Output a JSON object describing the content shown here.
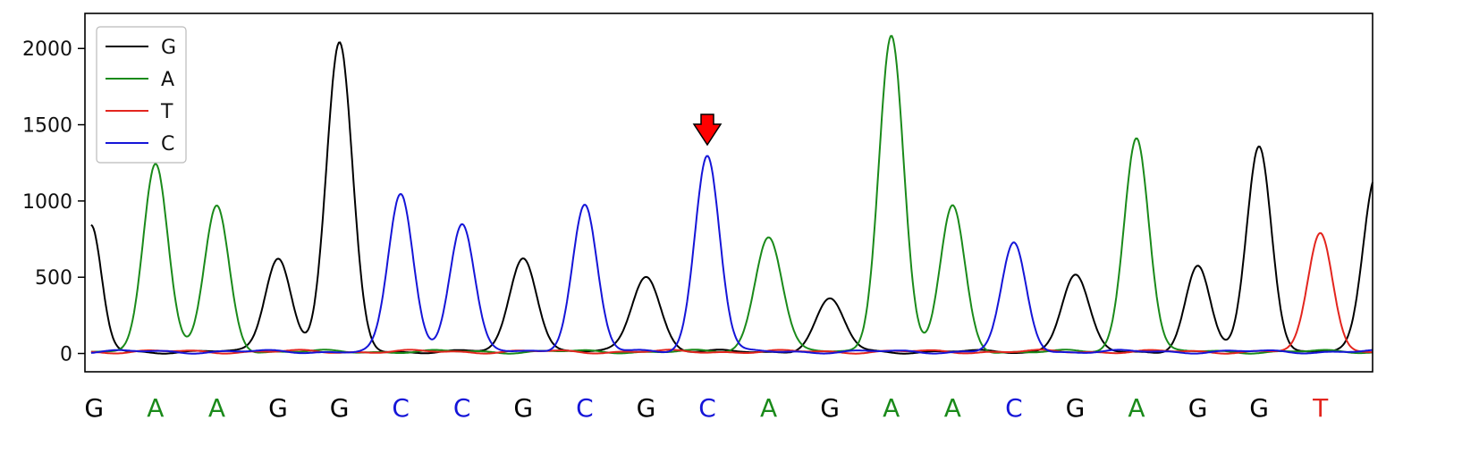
{
  "chart_data": {
    "type": "line",
    "title": "",
    "xlabel": "",
    "ylabel": "",
    "ylim": [
      -120,
      2230
    ],
    "yticks": [
      0,
      500,
      1000,
      1500,
      2000
    ],
    "ytick_labels": [
      "0",
      "500",
      "1000",
      "1500",
      "2000"
    ],
    "grid": false,
    "legend_position": "top-left",
    "colors": {
      "G": "#000000",
      "A": "#1a8a1a",
      "T": "#e3251e",
      "C": "#1515d8"
    },
    "series": [
      {
        "name": "G",
        "color": "#000000"
      },
      {
        "name": "A",
        "color": "#1a8a1a"
      },
      {
        "name": "T",
        "color": "#e3251e"
      },
      {
        "name": "C",
        "color": "#1515d8"
      }
    ],
    "base_calls": [
      "G",
      "A",
      "A",
      "G",
      "G",
      "C",
      "C",
      "G",
      "C",
      "G",
      "C",
      "A",
      "G",
      "A",
      "A",
      "C",
      "G",
      "A",
      "G",
      "G",
      "T"
    ],
    "x_range": [
      -0.15,
      20.85
    ],
    "peaks": {
      "G": [
        {
          "x": -0.05,
          "h": 820,
          "w": 0.17
        },
        {
          "x": 3.0,
          "h": 620,
          "w": 0.21
        },
        {
          "x": 4.0,
          "h": 2020,
          "w": 0.21
        },
        {
          "x": 7.0,
          "h": 620,
          "w": 0.22
        },
        {
          "x": 9.0,
          "h": 500,
          "w": 0.23
        },
        {
          "x": 12.0,
          "h": 340,
          "w": 0.23
        },
        {
          "x": 16.0,
          "h": 500,
          "w": 0.22
        },
        {
          "x": 18.0,
          "h": 555,
          "w": 0.2
        },
        {
          "x": 19.0,
          "h": 1350,
          "w": 0.2
        },
        {
          "x": 20.9,
          "h": 1150,
          "w": 0.2
        }
      ],
      "A": [
        {
          "x": 1.0,
          "h": 1235,
          "w": 0.2
        },
        {
          "x": 2.0,
          "h": 950,
          "w": 0.2
        },
        {
          "x": 11.0,
          "h": 760,
          "w": 0.22
        },
        {
          "x": 13.0,
          "h": 2080,
          "w": 0.2
        },
        {
          "x": 14.0,
          "h": 950,
          "w": 0.2
        },
        {
          "x": 17.0,
          "h": 1410,
          "w": 0.2
        }
      ],
      "T": [
        {
          "x": 20.0,
          "h": 780,
          "w": 0.2
        }
      ],
      "C": [
        {
          "x": 5.0,
          "h": 1035,
          "w": 0.2
        },
        {
          "x": 6.0,
          "h": 845,
          "w": 0.2
        },
        {
          "x": 8.0,
          "h": 965,
          "w": 0.2
        },
        {
          "x": 10.0,
          "h": 1290,
          "w": 0.2
        },
        {
          "x": 15.0,
          "h": 705,
          "w": 0.2
        }
      ]
    },
    "annotation": {
      "type": "arrow",
      "target_base_index": 10,
      "color": "#ff0000",
      "y": 1400
    }
  }
}
